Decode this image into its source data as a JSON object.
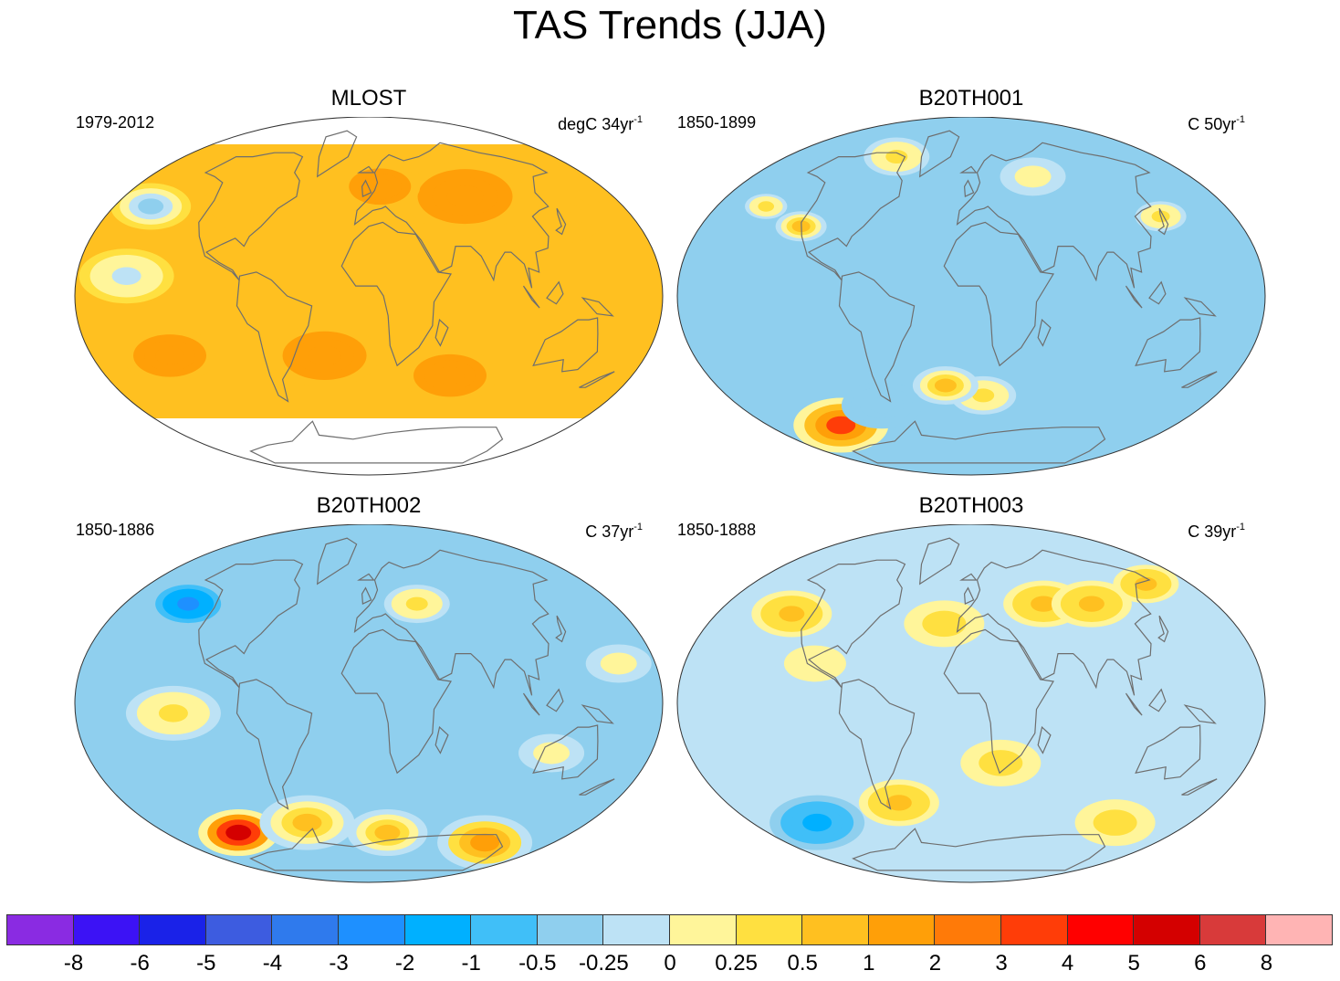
{
  "title": "TAS Trends (JJA)",
  "panels": [
    {
      "name": "MLOST",
      "period": "1979-2012",
      "units_prefix": "degC 34yr",
      "units_exp": "-1",
      "scheme": "warm"
    },
    {
      "name": "B20TH001",
      "period": "1850-1899",
      "units_prefix": "C 50yr",
      "units_exp": "-1",
      "scheme": "cool1"
    },
    {
      "name": "B20TH002",
      "period": "1850-1886",
      "units_prefix": "C 37yr",
      "units_exp": "-1",
      "scheme": "cool2"
    },
    {
      "name": "B20TH003",
      "period": "1850-1888",
      "units_prefix": "C 39yr",
      "units_exp": "-1",
      "scheme": "mixed"
    }
  ],
  "colorbar": {
    "colors": [
      "#8a2be2",
      "#3c12f5",
      "#1a22e8",
      "#3d5ce0",
      "#2f7aed",
      "#1e90ff",
      "#00b0ff",
      "#40bff8",
      "#8fcfee",
      "#bde2f5",
      "#fff59a",
      "#ffe040",
      "#ffc020",
      "#ff9f08",
      "#ff7a08",
      "#ff3d08",
      "#ff0000",
      "#d40000",
      "#d83a3a",
      "#ffb4b4"
    ],
    "labels": [
      "-8",
      "-6",
      "-5",
      "-4",
      "-3",
      "-2",
      "-1",
      "-0.5",
      "-0.25",
      "0",
      "0.25",
      "0.5",
      "1",
      "2",
      "3",
      "4",
      "5",
      "6",
      "8"
    ]
  }
}
